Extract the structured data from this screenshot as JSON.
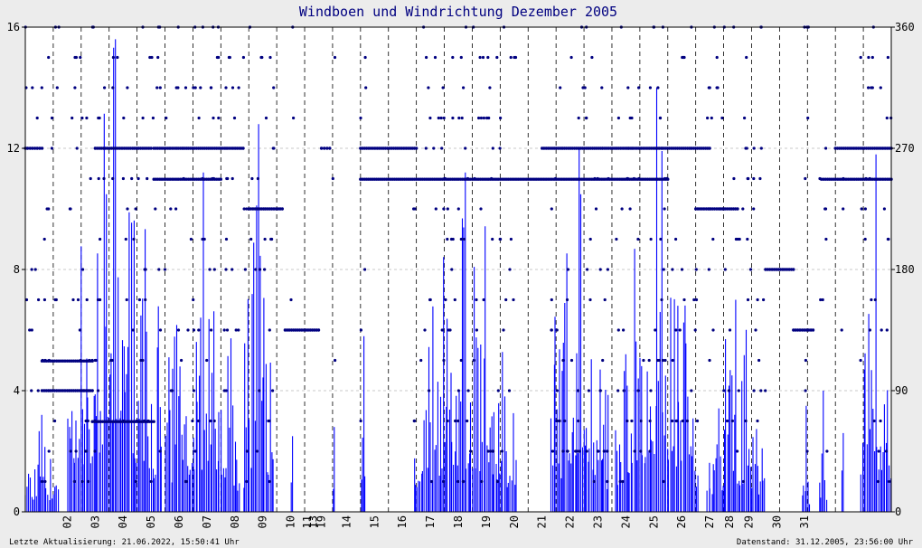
{
  "chart_data": {
    "type": "bar",
    "title": "Windboen und Windrichtung Dezember 2005",
    "xlabel": "",
    "ylabel": "",
    "left_axis": {
      "ylim": [
        0,
        16
      ],
      "ticks": [
        0,
        4,
        8,
        12,
        16
      ]
    },
    "right_axis": {
      "ylim": [
        0,
        360
      ],
      "ticks": [
        0,
        90,
        180,
        270,
        360
      ]
    },
    "x_tick_labels": [
      "02",
      "03",
      "04",
      "05",
      "06",
      "07",
      "08",
      "09",
      "10",
      "11",
      "13",
      "19",
      "14",
      "15",
      "16",
      "17",
      "18",
      "19",
      "20",
      "21",
      "22",
      "23",
      "24",
      "25",
      "26",
      "27",
      "28",
      "29",
      "30",
      "31"
    ],
    "grid": true,
    "colors": {
      "gusts": "#0000ff",
      "direction": "#000080",
      "title": "#000080",
      "plot_bg": "#ffffff",
      "page_bg": "#ececec"
    },
    "series": [
      {
        "chart_type": "bar",
        "axis": "left",
        "color": "#0000ff",
        "periods": [
          {
            "from": 0.0,
            "to": 1.2,
            "peak": 3.2
          },
          {
            "from": 1.5,
            "to": 4.9,
            "peak": 15.6
          },
          {
            "from": 5.0,
            "to": 7.7,
            "peak": 11.2
          },
          {
            "from": 7.8,
            "to": 8.9,
            "peak": 12.8
          },
          {
            "from": 9.5,
            "to": 9.6,
            "peak": 2.5
          },
          {
            "from": 11.0,
            "to": 11.1,
            "peak": 2.8
          },
          {
            "from": 12.0,
            "to": 12.2,
            "peak": 5.8
          },
          {
            "from": 13.9,
            "to": 17.6,
            "peak": 11.2
          },
          {
            "from": 18.8,
            "to": 20.9,
            "peak": 12.0
          },
          {
            "from": 21.1,
            "to": 24.1,
            "peak": 14.0
          },
          {
            "from": 24.4,
            "to": 26.5,
            "peak": 7.0
          },
          {
            "from": 27.8,
            "to": 28.1,
            "peak": 3.5
          },
          {
            "from": 28.4,
            "to": 28.7,
            "peak": 4.0
          },
          {
            "from": 29.2,
            "to": 29.3,
            "peak": 2.6
          },
          {
            "from": 29.9,
            "to": 31.0,
            "peak": 11.8
          }
        ]
      },
      {
        "chart_type": "scatter",
        "axis": "right",
        "color": "#000080",
        "runs": [
          {
            "from": 0.0,
            "to": 0.6,
            "deg": 270
          },
          {
            "from": 0.6,
            "to": 2.4,
            "deg": 90
          },
          {
            "from": 0.6,
            "to": 2.4,
            "deg": 112
          },
          {
            "from": 2.4,
            "to": 4.6,
            "deg": 67
          },
          {
            "from": 2.5,
            "to": 4.5,
            "deg": 270
          },
          {
            "from": 4.6,
            "to": 7.8,
            "deg": 270
          },
          {
            "from": 4.6,
            "to": 7.0,
            "deg": 247
          },
          {
            "from": 8.0,
            "to": 9.2,
            "deg": 225
          },
          {
            "from": 9.3,
            "to": 10.5,
            "deg": 135
          },
          {
            "from": 10.6,
            "to": 10.9,
            "deg": 270
          },
          {
            "from": 12.0,
            "to": 14.0,
            "deg": 270
          },
          {
            "from": 12.0,
            "to": 23.0,
            "deg": 247
          },
          {
            "from": 18.5,
            "to": 24.5,
            "deg": 270
          },
          {
            "from": 24.0,
            "to": 25.5,
            "deg": 225
          },
          {
            "from": 26.5,
            "to": 27.5,
            "deg": 180
          },
          {
            "from": 27.5,
            "to": 28.2,
            "deg": 135
          },
          {
            "from": 28.5,
            "to": 31.0,
            "deg": 247
          },
          {
            "from": 29.0,
            "to": 31.0,
            "deg": 270
          }
        ]
      }
    ]
  },
  "footer": {
    "left": "Letzte Aktualisierung: 21.06.2022, 15:50:41 Uhr",
    "right": "Datenstand: 31.12.2005, 23:56:00 Uhr"
  }
}
